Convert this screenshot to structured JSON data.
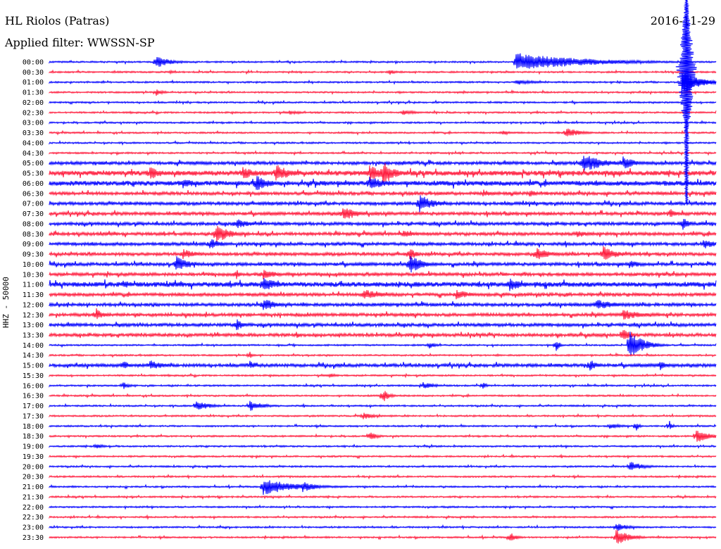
{
  "header": {
    "station": "HL Riolos (Patras)",
    "date": "2016-11-29",
    "filter": "Applied filter: WWSSN-SP",
    "channel": "HHZ - 50000"
  },
  "colors": {
    "trace_a": "#0000ff",
    "trace_b": "#ff1a3c",
    "axis": "#000000"
  },
  "chart_data": {
    "type": "line",
    "title": "HL Riolos (Patras)",
    "subtitle": "Applied filter: WWSSN-SP",
    "ylabel": "HHZ - 50000",
    "row_labels": [
      "00:00",
      "00:30",
      "01:00",
      "01:30",
      "02:00",
      "02:30",
      "03:00",
      "03:30",
      "04:00",
      "04:30",
      "05:00",
      "05:30",
      "06:00",
      "06:30",
      "07:00",
      "07:30",
      "08:00",
      "08:30",
      "09:00",
      "09:30",
      "10:00",
      "10:30",
      "11:00",
      "11:30",
      "12:00",
      "12:30",
      "13:00",
      "13:30",
      "14:00",
      "14:30",
      "15:00",
      "15:30",
      "16:00",
      "16:30",
      "17:00",
      "17:30",
      "18:00",
      "18:30",
      "19:00",
      "19:30",
      "20:00",
      "20:30",
      "21:00",
      "21:30",
      "22:00",
      "22:30",
      "23:00",
      "23:30"
    ],
    "row_duration_minutes": 30,
    "noise_level": [
      1,
      1,
      1,
      1,
      1,
      1,
      1,
      1,
      1,
      1,
      2,
      3,
      3,
      2,
      2,
      2,
      2,
      2,
      2,
      2,
      2,
      2,
      3,
      2,
      2,
      2,
      2,
      2,
      1,
      1,
      2,
      1,
      1,
      1,
      1,
      1,
      1,
      1,
      1,
      1,
      1,
      1,
      1,
      1,
      1,
      1,
      1,
      1
    ],
    "events": [
      {
        "row": 0,
        "t": 0.16,
        "amp": 10,
        "dur": 0.02
      },
      {
        "row": 0,
        "t": 0.7,
        "amp": 13,
        "dur": 0.1
      },
      {
        "row": 1,
        "t": 0.18,
        "amp": 3,
        "dur": 0.01
      },
      {
        "row": 1,
        "t": 0.51,
        "amp": 4,
        "dur": 0.01
      },
      {
        "row": 2,
        "t": 0.7,
        "amp": 4,
        "dur": 0.03
      },
      {
        "row": 3,
        "t": 0.16,
        "amp": 6,
        "dur": 0.01
      },
      {
        "row": 3,
        "t": 0.62,
        "amp": 3,
        "dur": 0.005
      },
      {
        "row": 5,
        "t": 0.53,
        "amp": 4,
        "dur": 0.02
      },
      {
        "row": 5,
        "t": 0.36,
        "amp": 3,
        "dur": 0.02
      },
      {
        "row": 7,
        "t": 0.68,
        "amp": 4,
        "dur": 0.01
      },
      {
        "row": 7,
        "t": 0.775,
        "amp": 8,
        "dur": 0.02
      },
      {
        "row": 10,
        "t": 0.8,
        "amp": 14,
        "dur": 0.03
      },
      {
        "row": 10,
        "t": 0.86,
        "amp": 10,
        "dur": 0.02
      },
      {
        "row": 11,
        "t": 0.15,
        "amp": 10,
        "dur": 0.02
      },
      {
        "row": 11,
        "t": 0.29,
        "amp": 10,
        "dur": 0.02
      },
      {
        "row": 11,
        "t": 0.34,
        "amp": 14,
        "dur": 0.02
      },
      {
        "row": 11,
        "t": 0.48,
        "amp": 12,
        "dur": 0.02
      },
      {
        "row": 11,
        "t": 0.5,
        "amp": 20,
        "dur": 0.015
      },
      {
        "row": 12,
        "t": 0.31,
        "amp": 12,
        "dur": 0.02
      },
      {
        "row": 12,
        "t": 0.2,
        "amp": 8,
        "dur": 0.02
      },
      {
        "row": 12,
        "t": 0.48,
        "amp": 12,
        "dur": 0.02
      },
      {
        "row": 13,
        "t": 0.65,
        "amp": 6,
        "dur": 0.015
      },
      {
        "row": 13,
        "t": 0.72,
        "amp": 6,
        "dur": 0.015
      },
      {
        "row": 14,
        "t": 0.555,
        "amp": 14,
        "dur": 0.02
      },
      {
        "row": 15,
        "t": 0.44,
        "amp": 12,
        "dur": 0.02
      },
      {
        "row": 15,
        "t": 0.93,
        "amp": 8,
        "dur": 0.01
      },
      {
        "row": 16,
        "t": 0.28,
        "amp": 8,
        "dur": 0.02
      },
      {
        "row": 16,
        "t": 0.95,
        "amp": 10,
        "dur": 0.01
      },
      {
        "row": 17,
        "t": 0.25,
        "amp": 14,
        "dur": 0.02
      },
      {
        "row": 17,
        "t": 0.53,
        "amp": 6,
        "dur": 0.02
      },
      {
        "row": 17,
        "t": 0.79,
        "amp": 6,
        "dur": 0.02
      },
      {
        "row": 18,
        "t": 0.24,
        "amp": 8,
        "dur": 0.02
      },
      {
        "row": 18,
        "t": 0.98,
        "amp": 8,
        "dur": 0.02
      },
      {
        "row": 19,
        "t": 0.2,
        "amp": 8,
        "dur": 0.02
      },
      {
        "row": 19,
        "t": 0.54,
        "amp": 10,
        "dur": 0.01
      },
      {
        "row": 19,
        "t": 0.73,
        "amp": 10,
        "dur": 0.02
      },
      {
        "row": 19,
        "t": 0.83,
        "amp": 12,
        "dur": 0.02
      },
      {
        "row": 20,
        "t": 0.19,
        "amp": 12,
        "dur": 0.02
      },
      {
        "row": 20,
        "t": 0.54,
        "amp": 14,
        "dur": 0.02
      },
      {
        "row": 20,
        "t": 0.87,
        "amp": 6,
        "dur": 0.02
      },
      {
        "row": 21,
        "t": 0.28,
        "amp": 10,
        "dur": 0.005
      },
      {
        "row": 21,
        "t": 0.32,
        "amp": 8,
        "dur": 0.02
      },
      {
        "row": 22,
        "t": 0.32,
        "amp": 12,
        "dur": 0.02
      },
      {
        "row": 22,
        "t": 0.69,
        "amp": 10,
        "dur": 0.02
      },
      {
        "row": 22,
        "t": 0.11,
        "amp": 6,
        "dur": 0.02
      },
      {
        "row": 23,
        "t": 0.47,
        "amp": 8,
        "dur": 0.03
      },
      {
        "row": 23,
        "t": 0.61,
        "amp": 8,
        "dur": 0.02
      },
      {
        "row": 24,
        "t": 0.32,
        "amp": 10,
        "dur": 0.02
      },
      {
        "row": 24,
        "t": 0.82,
        "amp": 8,
        "dur": 0.03
      },
      {
        "row": 25,
        "t": 0.07,
        "amp": 10,
        "dur": 0.01
      },
      {
        "row": 25,
        "t": 0.86,
        "amp": 8,
        "dur": 0.03
      },
      {
        "row": 26,
        "t": 0.28,
        "amp": 10,
        "dur": 0.01
      },
      {
        "row": 27,
        "t": 0.37,
        "amp": 5,
        "dur": 0.01
      },
      {
        "row": 27,
        "t": 0.86,
        "amp": 12,
        "dur": 0.01
      },
      {
        "row": 28,
        "t": 0.57,
        "amp": 5,
        "dur": 0.01
      },
      {
        "row": 28,
        "t": 0.76,
        "amp": 10,
        "dur": 0.005
      },
      {
        "row": 28,
        "t": 0.87,
        "amp": 22,
        "dur": 0.02
      },
      {
        "row": 29,
        "t": 0.3,
        "amp": 6,
        "dur": 0.005
      },
      {
        "row": 30,
        "t": 0.11,
        "amp": 8,
        "dur": 0.01
      },
      {
        "row": 30,
        "t": 0.15,
        "amp": 8,
        "dur": 0.02
      },
      {
        "row": 30,
        "t": 0.3,
        "amp": 8,
        "dur": 0.01
      },
      {
        "row": 30,
        "t": 0.81,
        "amp": 10,
        "dur": 0.01
      },
      {
        "row": 30,
        "t": 0.915,
        "amp": 8,
        "dur": 0.01
      },
      {
        "row": 31,
        "t": 0.42,
        "amp": 4,
        "dur": 0.01
      },
      {
        "row": 32,
        "t": 0.11,
        "amp": 6,
        "dur": 0.01
      },
      {
        "row": 32,
        "t": 0.56,
        "amp": 5,
        "dur": 0.02
      },
      {
        "row": 32,
        "t": 0.65,
        "amp": 6,
        "dur": 0.005
      },
      {
        "row": 33,
        "t": 0.5,
        "amp": 10,
        "dur": 0.01
      },
      {
        "row": 34,
        "t": 0.22,
        "amp": 8,
        "dur": 0.02
      },
      {
        "row": 34,
        "t": 0.3,
        "amp": 8,
        "dur": 0.02
      },
      {
        "row": 35,
        "t": 0.47,
        "amp": 5,
        "dur": 0.02
      },
      {
        "row": 36,
        "t": 0.84,
        "amp": 4,
        "dur": 0.02
      },
      {
        "row": 36,
        "t": 0.88,
        "amp": 8,
        "dur": 0.005
      },
      {
        "row": 36,
        "t": 0.93,
        "amp": 8,
        "dur": 0.005
      },
      {
        "row": 37,
        "t": 0.48,
        "amp": 8,
        "dur": 0.01
      },
      {
        "row": 37,
        "t": 0.97,
        "amp": 10,
        "dur": 0.02
      },
      {
        "row": 38,
        "t": 0.07,
        "amp": 5,
        "dur": 0.01
      },
      {
        "row": 40,
        "t": 0.87,
        "amp": 8,
        "dur": 0.02
      },
      {
        "row": 42,
        "t": 0.32,
        "amp": 12,
        "dur": 0.05
      },
      {
        "row": 42,
        "t": 0.38,
        "amp": 8,
        "dur": 0.02
      },
      {
        "row": 46,
        "t": 0.85,
        "amp": 6,
        "dur": 0.02
      },
      {
        "row": 47,
        "t": 0.69,
        "amp": 8,
        "dur": 0.01
      },
      {
        "row": 47,
        "t": 0.85,
        "amp": 12,
        "dur": 0.02
      }
    ]
  }
}
